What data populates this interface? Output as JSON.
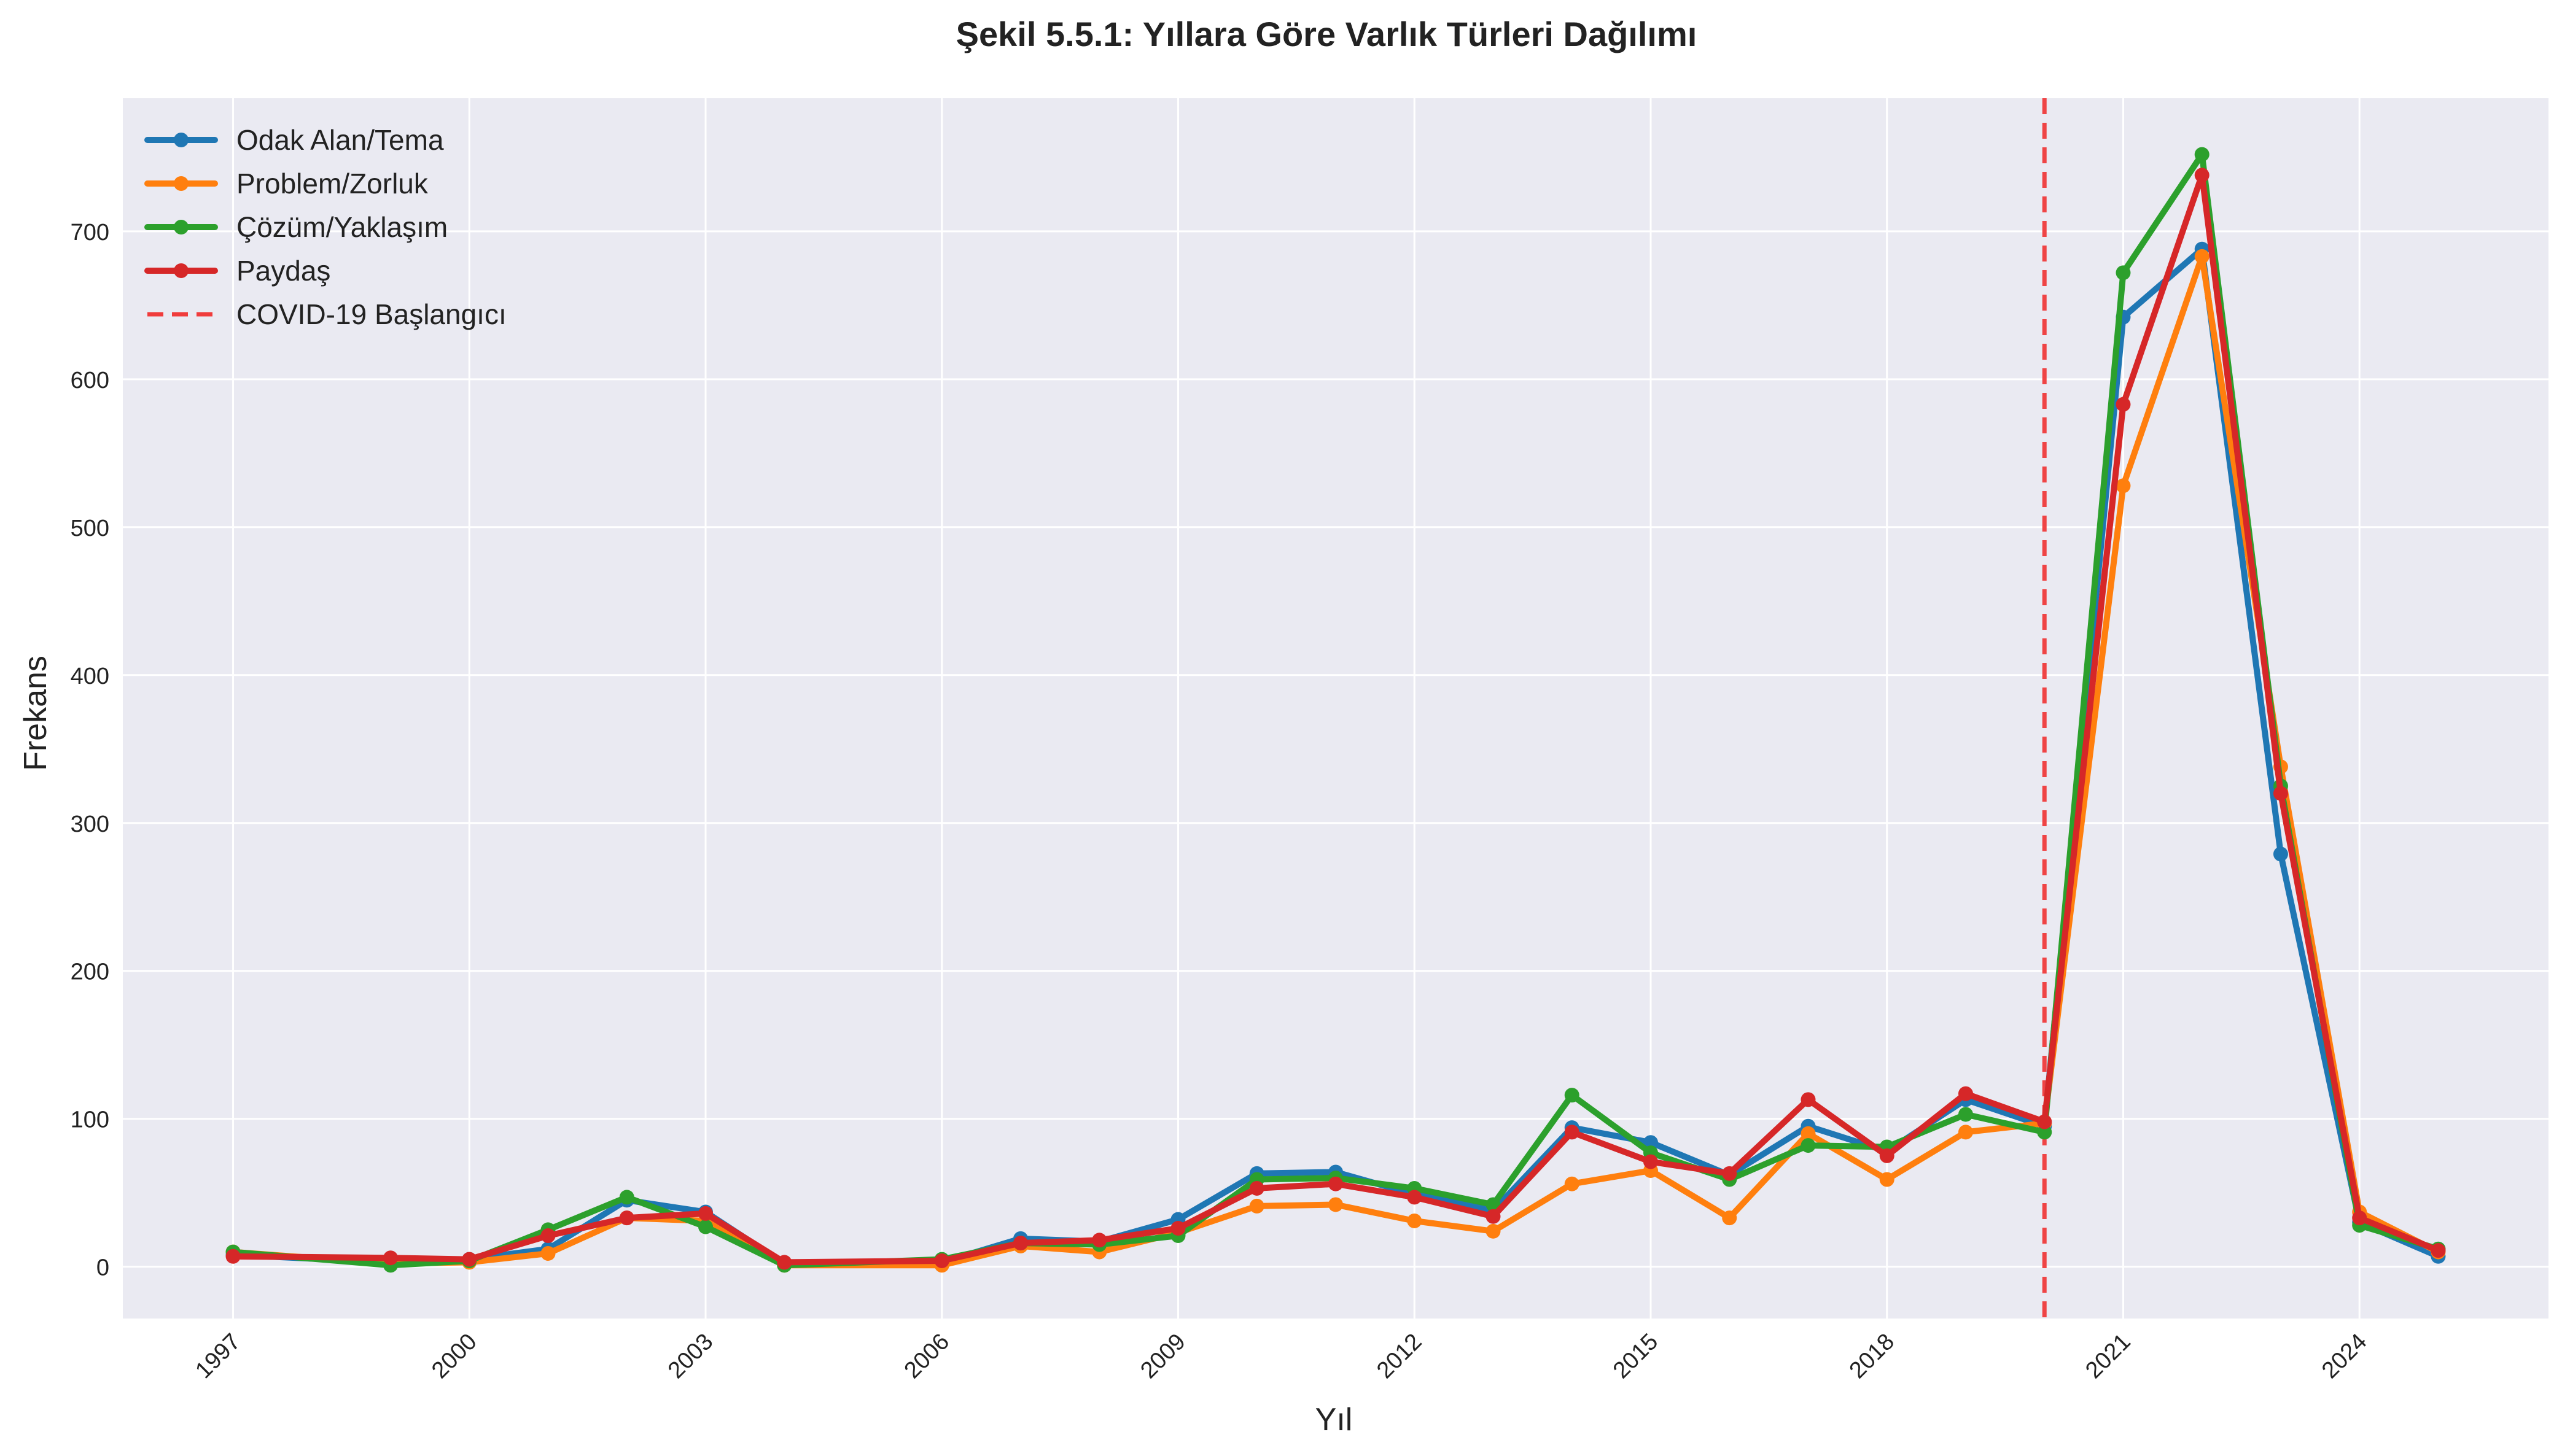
{
  "chart_data": {
    "type": "line",
    "title": "Şekil 5.5.1: Yıllara Göre Varlık Türleri Dağılımı",
    "xlabel": "Yıl",
    "ylabel": "Frekans",
    "x": [
      1997,
      1999,
      2000,
      2001,
      2002,
      2003,
      2004,
      2006,
      2007,
      2008,
      2009,
      2010,
      2011,
      2012,
      2013,
      2014,
      2015,
      2016,
      2017,
      2018,
      2019,
      2020,
      2021,
      2022,
      2023,
      2024,
      2025
    ],
    "x_ticks": [
      "1997",
      "2000",
      "2003",
      "2006",
      "2009",
      "2012",
      "2015",
      "2018",
      "2021",
      "2024"
    ],
    "y_ticks": [
      "0",
      "100",
      "200",
      "300",
      "400",
      "500",
      "600",
      "700"
    ],
    "xlim": [
      1995.6,
      2026.4
    ],
    "ylim": [
      -35,
      790
    ],
    "grid": true,
    "legend_position": "top-left",
    "series": [
      {
        "name": "Odak Alan/Tema",
        "color": "#1f77b4",
        "values": [
          8,
          3,
          5,
          12,
          45,
          37,
          2,
          3,
          19,
          17,
          32,
          63,
          64,
          49,
          38,
          94,
          84,
          62,
          95,
          78,
          113,
          95,
          642,
          688,
          279,
          30,
          7
        ]
      },
      {
        "name": "Problem/Zorluk",
        "color": "#ff7f0e",
        "values": [
          10,
          2,
          3,
          9,
          33,
          31,
          1,
          1,
          14,
          10,
          23,
          41,
          42,
          31,
          24,
          56,
          65,
          33,
          90,
          59,
          91,
          97,
          528,
          683,
          338,
          37,
          10
        ]
      },
      {
        "name": "Çözüm/Yaklaşım",
        "color": "#2ca02c",
        "values": [
          10,
          1,
          4,
          25,
          47,
          27,
          1,
          5,
          16,
          15,
          21,
          59,
          60,
          53,
          42,
          116,
          77,
          59,
          82,
          81,
          103,
          91,
          672,
          752,
          325,
          28,
          12
        ]
      },
      {
        "name": "Paydaş",
        "color": "#d62728",
        "values": [
          7,
          6,
          5,
          21,
          33,
          36,
          3,
          4,
          16,
          18,
          26,
          53,
          56,
          47,
          34,
          91,
          71,
          63,
          113,
          75,
          117,
          98,
          583,
          738,
          320,
          33,
          11
        ]
      }
    ],
    "annotations": [
      {
        "type": "vline",
        "x": 2020,
        "name": "COVID-19 Başlangıcı",
        "color": "#f03c3c",
        "style": "dashed"
      }
    ]
  }
}
